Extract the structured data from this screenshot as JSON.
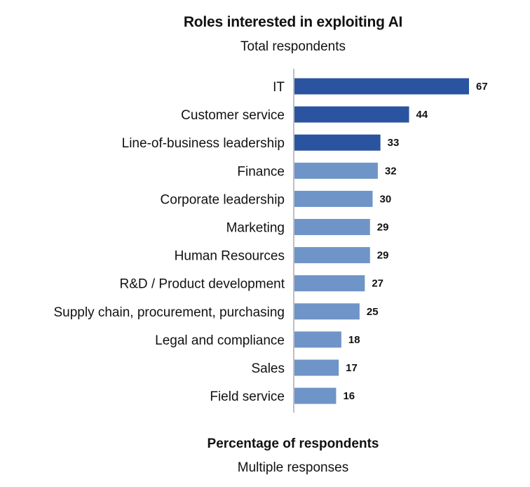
{
  "chart_data": {
    "type": "bar",
    "orientation": "horizontal",
    "title": "Roles interested in exploiting AI",
    "subtitle": "Total respondents",
    "xlabel": "Percentage of respondents",
    "xlabel_note": "Multiple responses",
    "categories": [
      "IT",
      "Customer service",
      "Line-of-business leadership",
      "Finance",
      "Corporate leadership",
      "Marketing",
      "Human Resources",
      "R&D / Product development",
      "Supply chain, procurement, purchasing",
      "Legal and compliance",
      "Sales",
      "Field service"
    ],
    "values": [
      67,
      44,
      33,
      32,
      30,
      29,
      29,
      27,
      25,
      18,
      17,
      16
    ],
    "value_labels": [
      "67",
      "44",
      "33",
      "32",
      "30",
      "29",
      "29",
      "27",
      "25",
      "18",
      "17",
      "16"
    ],
    "highlight_count": 3,
    "colors": {
      "highlight": "#2a54a0",
      "normal": "#6f94c8",
      "axis": "#bfbfbf"
    },
    "xlim": [
      0,
      67
    ],
    "grid": false
  }
}
